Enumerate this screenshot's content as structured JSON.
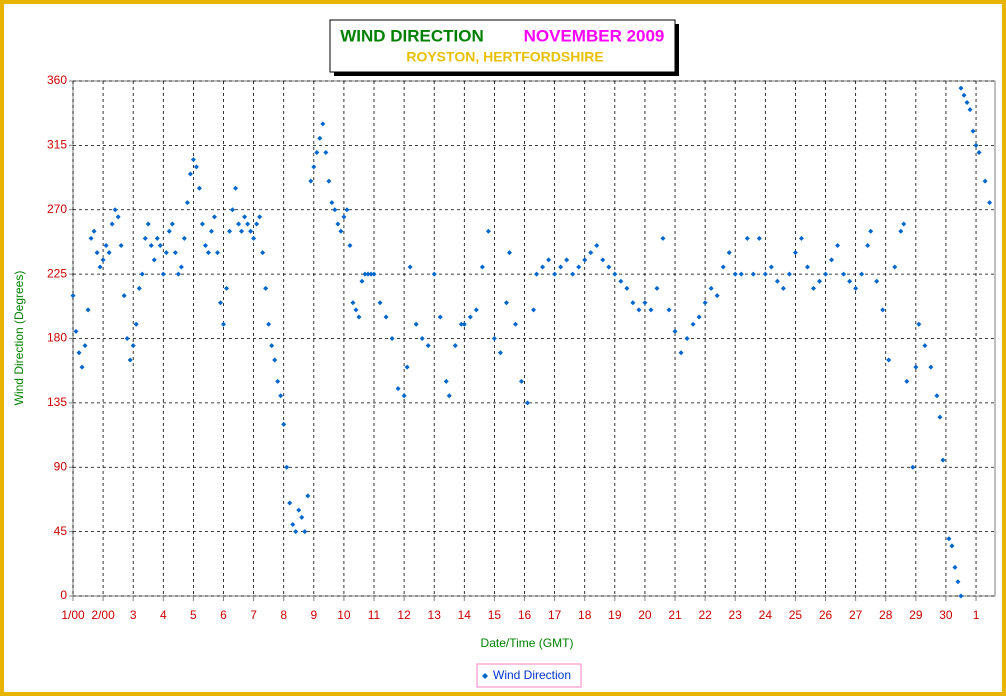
{
  "chart_data": {
    "type": "scatter",
    "title": "WIND DIRECTION",
    "period": "NOVEMBER 2009",
    "subtitle": "ROYSTON, HERTFORDSHIRE",
    "xlabel": "Date/Time (GMT)",
    "ylabel": "Wind Direction (Degrees)",
    "x": [
      0.0,
      0.1,
      0.2,
      0.3,
      0.4,
      0.5,
      0.6,
      0.7,
      0.8,
      0.9,
      1.0,
      1.1,
      1.2,
      1.3,
      1.4,
      1.5,
      1.6,
      1.7,
      1.8,
      1.9,
      2.0,
      2.1,
      2.2,
      2.3,
      2.4,
      2.5,
      2.6,
      2.7,
      2.8,
      2.9,
      3.0,
      3.1,
      3.2,
      3.3,
      3.4,
      3.5,
      3.6,
      3.7,
      3.8,
      3.9,
      4.0,
      4.1,
      4.2,
      4.3,
      4.4,
      4.5,
      4.6,
      4.7,
      4.8,
      4.9,
      5.0,
      5.1,
      5.2,
      5.3,
      5.4,
      5.5,
      5.6,
      5.7,
      5.8,
      5.9,
      6.0,
      6.1,
      6.2,
      6.3,
      6.4,
      6.5,
      6.6,
      6.7,
      6.8,
      6.9,
      7.0,
      7.1,
      7.2,
      7.3,
      7.4,
      7.5,
      7.6,
      7.7,
      7.8,
      7.9,
      8.0,
      8.1,
      8.2,
      8.3,
      8.4,
      8.5,
      8.6,
      8.7,
      8.8,
      8.9,
      9.0,
      9.1,
      9.2,
      9.3,
      9.4,
      9.5,
      9.6,
      9.7,
      9.8,
      9.9,
      10.0,
      10.2,
      10.4,
      10.6,
      10.8,
      11.0,
      11.1,
      11.2,
      11.4,
      11.6,
      11.8,
      12.0,
      12.2,
      12.4,
      12.5,
      12.7,
      12.9,
      13.0,
      13.2,
      13.4,
      13.6,
      13.8,
      14.0,
      14.2,
      14.4,
      14.5,
      14.7,
      14.9,
      15.1,
      15.3,
      15.4,
      15.6,
      15.8,
      16.0,
      16.2,
      16.4,
      16.6,
      16.8,
      17.0,
      17.2,
      17.4,
      17.6,
      17.8,
      18.0,
      18.2,
      18.4,
      18.6,
      18.8,
      19.0,
      19.2,
      19.4,
      19.6,
      19.8,
      20.0,
      20.2,
      20.4,
      20.6,
      20.8,
      21.0,
      21.2,
      21.4,
      21.6,
      21.8,
      22.0,
      22.2,
      22.4,
      22.6,
      22.8,
      23.0,
      23.2,
      23.4,
      23.6,
      23.8,
      24.0,
      24.2,
      24.4,
      24.6,
      24.8,
      25.0,
      25.2,
      25.4,
      25.6,
      25.8,
      26.0,
      26.2,
      26.4,
      26.5,
      26.7,
      26.9,
      27.1,
      27.3,
      27.5,
      27.6,
      27.7,
      27.9,
      28.0,
      28.1,
      28.3,
      28.5,
      28.7,
      28.8,
      28.9,
      29.1,
      29.2,
      29.3,
      29.4,
      29.5,
      29.5,
      29.6,
      29.7,
      29.8,
      29.9,
      30.0,
      30.1,
      30.3,
      30.45
    ],
    "series": [
      {
        "name": "Wind Direction",
        "color": "#0066cc",
        "values": [
          210,
          185,
          170,
          160,
          175,
          200,
          250,
          255,
          240,
          230,
          235,
          245,
          240,
          260,
          270,
          265,
          245,
          210,
          180,
          165,
          175,
          190,
          215,
          225,
          250,
          260,
          245,
          235,
          250,
          245,
          225,
          240,
          255,
          260,
          240,
          225,
          230,
          250,
          275,
          295,
          305,
          300,
          285,
          260,
          245,
          240,
          255,
          265,
          240,
          205,
          190,
          215,
          255,
          270,
          285,
          260,
          255,
          265,
          260,
          255,
          250,
          260,
          265,
          240,
          215,
          190,
          175,
          165,
          150,
          140,
          120,
          90,
          65,
          50,
          45,
          60,
          55,
          45,
          70,
          290,
          300,
          310,
          320,
          330,
          310,
          290,
          275,
          270,
          260,
          255,
          265,
          270,
          245,
          205,
          200,
          195,
          220,
          225,
          225,
          225,
          225,
          205,
          195,
          180,
          145,
          140,
          160,
          230,
          190,
          180,
          175,
          225,
          195,
          150,
          140,
          175,
          190,
          190,
          195,
          200,
          230,
          255,
          180,
          170,
          205,
          240,
          190,
          150,
          135,
          200,
          225,
          230,
          235,
          225,
          230,
          235,
          225,
          230,
          235,
          240,
          245,
          235,
          230,
          225,
          220,
          215,
          205,
          200,
          205,
          200,
          215,
          250,
          200,
          185,
          170,
          180,
          190,
          195,
          205,
          215,
          210,
          230,
          240,
          225,
          225,
          250,
          225,
          250,
          225,
          230,
          220,
          215,
          225,
          240,
          250,
          230,
          215,
          220,
          225,
          235,
          245,
          225,
          220,
          215,
          225,
          245,
          255,
          220,
          200,
          165,
          230,
          255,
          260,
          150,
          90,
          160,
          190,
          175,
          160,
          140,
          125,
          95,
          40,
          35,
          20,
          10,
          0,
          355,
          350,
          345,
          340,
          325,
          315,
          310,
          290,
          275
        ]
      }
    ],
    "xlim": [
      0,
      30.63
    ],
    "ylim": [
      0,
      360
    ],
    "xticks": [
      {
        "value": 0,
        "label": "1/00"
      },
      {
        "value": 1,
        "label": "2/00"
      },
      {
        "value": 2,
        "label": "3"
      },
      {
        "value": 3,
        "label": "4"
      },
      {
        "value": 4,
        "label": "5"
      },
      {
        "value": 5,
        "label": "6"
      },
      {
        "value": 6,
        "label": "7"
      },
      {
        "value": 7,
        "label": "8"
      },
      {
        "value": 8,
        "label": "9"
      },
      {
        "value": 9,
        "label": "10"
      },
      {
        "value": 10,
        "label": "11"
      },
      {
        "value": 11,
        "label": "12"
      },
      {
        "value": 12,
        "label": "13"
      },
      {
        "value": 13,
        "label": "14"
      },
      {
        "value": 14,
        "label": "15"
      },
      {
        "value": 15,
        "label": "16"
      },
      {
        "value": 16,
        "label": "17"
      },
      {
        "value": 17,
        "label": "18"
      },
      {
        "value": 18,
        "label": "19"
      },
      {
        "value": 19,
        "label": "20"
      },
      {
        "value": 20,
        "label": "21"
      },
      {
        "value": 21,
        "label": "22"
      },
      {
        "value": 22,
        "label": "23"
      },
      {
        "value": 23,
        "label": "24"
      },
      {
        "value": 24,
        "label": "25"
      },
      {
        "value": 25,
        "label": "26"
      },
      {
        "value": 26,
        "label": "27"
      },
      {
        "value": 27,
        "label": "28"
      },
      {
        "value": 28,
        "label": "29"
      },
      {
        "value": 29,
        "label": "30"
      },
      {
        "value": 30,
        "label": "1"
      }
    ],
    "yticks": [
      0,
      45,
      90,
      135,
      180,
      225,
      270,
      315,
      360
    ],
    "grid": true
  }
}
